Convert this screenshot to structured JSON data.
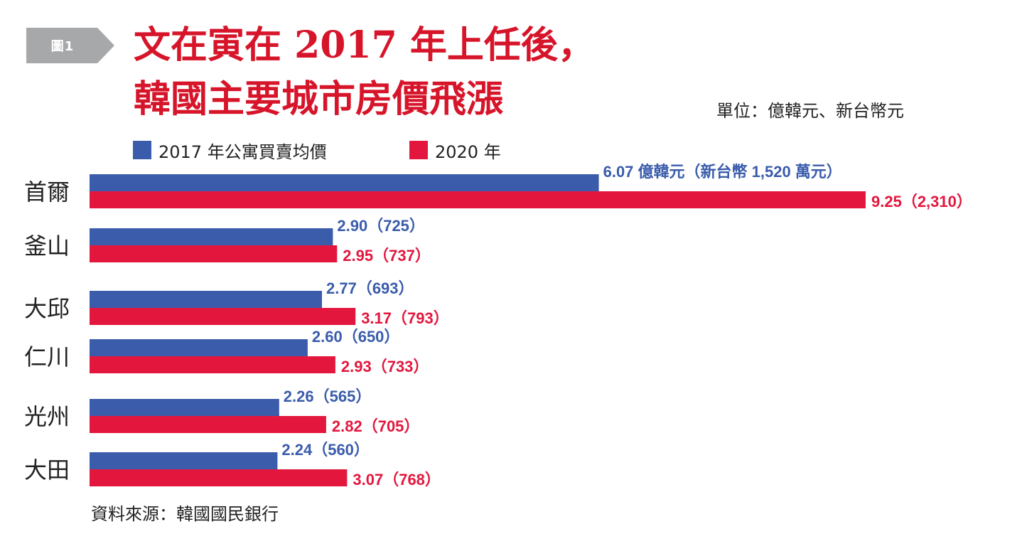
{
  "badge": "圖1",
  "title_line1": "文在寅在 2017 年上任後，",
  "title_line2": "韓國主要城市房價飛漲",
  "unit": "單位：億韓元、新台幣元",
  "source": "資料來源：韓國國民銀行",
  "chart_data": {
    "type": "bar",
    "orientation": "horizontal",
    "categories": [
      "首爾",
      "釜山",
      "大邱",
      "仁川",
      "光州",
      "大田"
    ],
    "series": [
      {
        "name": "2017 年公寓買賣均價",
        "color": "#3a5cab",
        "values": [
          6.07,
          2.9,
          2.77,
          2.6,
          2.26,
          2.24
        ],
        "labels": [
          "6.07 億韓元（新台幣 1,520 萬元）",
          "2.90（725）",
          "2.77（693）",
          "2.60（650）",
          "2.26（565）",
          "2.24（560）"
        ]
      },
      {
        "name": "2020 年",
        "color": "#e3173e",
        "values": [
          9.25,
          2.95,
          3.17,
          2.93,
          2.82,
          3.07
        ],
        "labels": [
          "9.25（2,310）",
          "2.95（737）",
          "3.17（793）",
          "2.93（733）",
          "2.82（705）",
          "3.07（768）"
        ]
      }
    ],
    "legend_position": "top-left",
    "grid": false
  }
}
